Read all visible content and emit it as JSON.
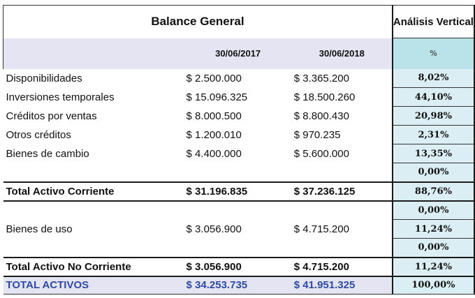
{
  "title": "Balance General",
  "vertical_header": "Análisis Vertical",
  "dates": [
    "30/06/2017",
    "30/06/2018"
  ],
  "percent_symbol": "%",
  "rows": [
    {
      "label": "Disponibilidades",
      "v2017": "$ 2.500.000",
      "v2018": "$ 3.365.200",
      "pct": "8,02%"
    },
    {
      "label": "Inversiones temporales",
      "v2017": "$ 15.096.325",
      "v2018": "$ 18.500.260",
      "pct": "44,10%"
    },
    {
      "label": "Créditos por ventas",
      "v2017": "$ 8.000.500",
      "v2018": "$ 8.800.430",
      "pct": "20,98%"
    },
    {
      "label": "Otros créditos",
      "v2017": "$ 1.200.010",
      "v2018": "$ 970.235",
      "pct": "2,31%"
    },
    {
      "label": "Bienes de cambio",
      "v2017": "$ 4.400.000",
      "v2018": "$ 5.600.000",
      "pct": "13,35%"
    },
    {
      "label": "",
      "v2017": "",
      "v2018": "",
      "pct": "0,00%"
    }
  ],
  "total_corriente": {
    "label": "Total Activo Corriente",
    "v2017": "$ 31.196.835",
    "v2018": "$ 37.236.125",
    "pct": "88,76%"
  },
  "no_corriente": {
    "label": "Bienes de uso",
    "v2017": "$ 3.056.900",
    "v2018": "$ 4.715.200",
    "pcts": [
      "0,00%",
      "11,24%",
      "0,00%"
    ]
  },
  "total_no_corriente": {
    "label": "Total Activo No Corriente",
    "v2017": "$ 3.056.900",
    "v2018": "$ 4.715.200",
    "pct": "11,24%"
  },
  "total_activos": {
    "label": "TOTAL ACTIVOS",
    "v2017": "$ 34.253.735",
    "v2018": "$ 41.951.325",
    "pct": "100,00%"
  }
}
